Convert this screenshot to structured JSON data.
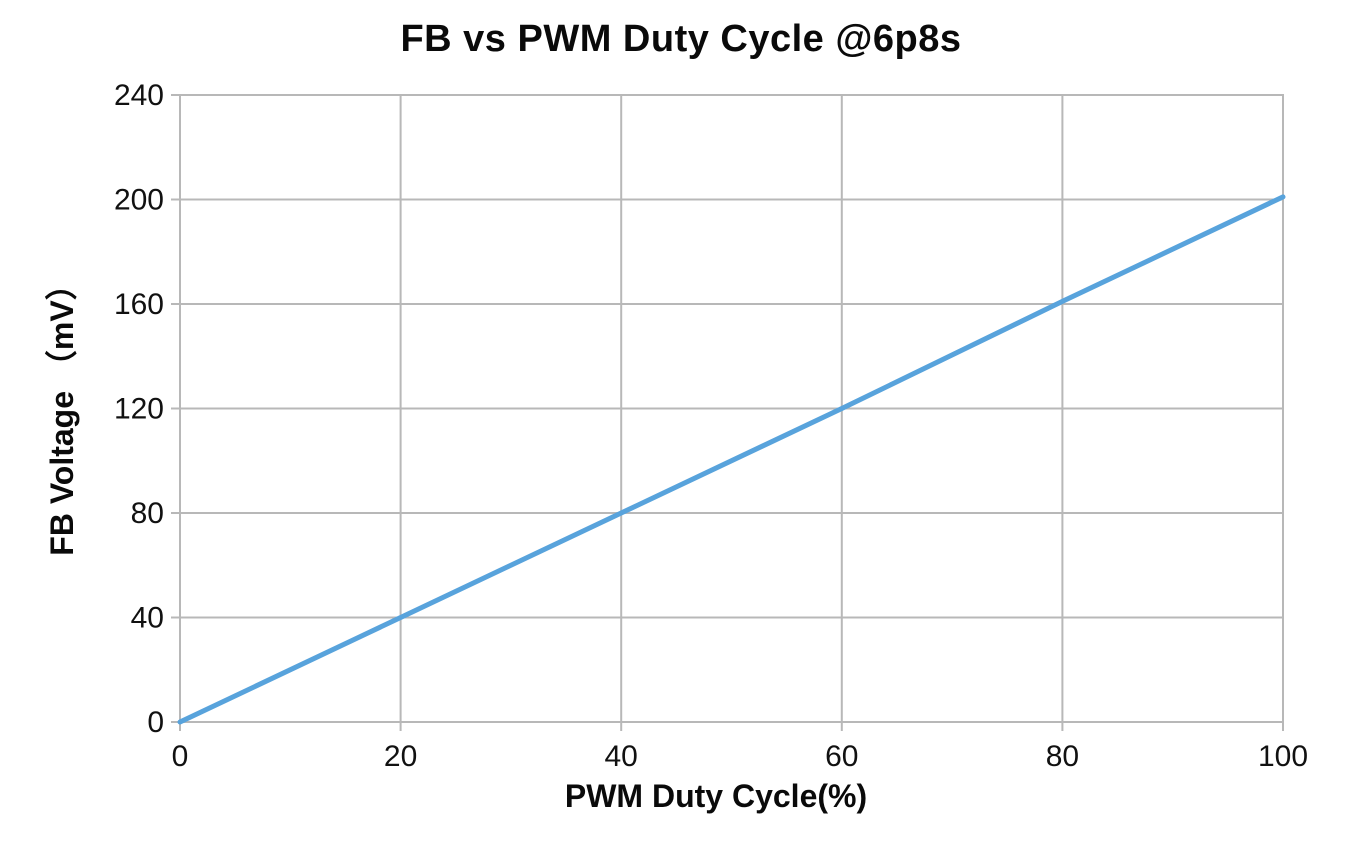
{
  "chart_data": {
    "type": "line",
    "title": "FB vs PWM Duty Cycle @6p8s",
    "xlabel": "PWM Duty Cycle(%)",
    "ylabel": "FB Voltage （mV）",
    "x": [
      0,
      20,
      40,
      60,
      80,
      100
    ],
    "values": [
      0,
      40,
      80,
      120,
      161,
      201
    ],
    "xlim": [
      0,
      100
    ],
    "ylim": [
      0,
      240
    ],
    "xticks": [
      0,
      20,
      40,
      60,
      80,
      100
    ],
    "yticks": [
      0,
      40,
      80,
      120,
      160,
      200,
      240
    ],
    "grid": true,
    "legend": "none",
    "colors": {
      "line": "#58A3DC",
      "grid": "#B8B8B8",
      "text": "#111111"
    }
  }
}
